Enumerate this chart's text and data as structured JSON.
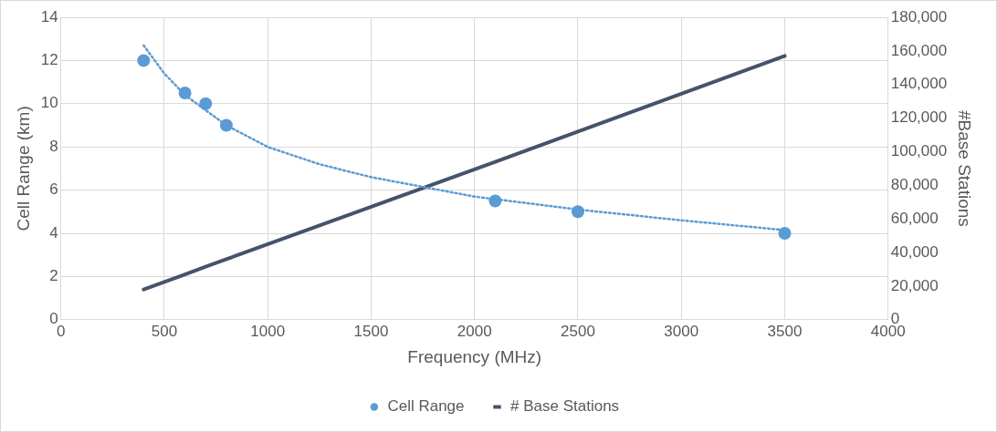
{
  "chart_data": {
    "type": "scatter",
    "xlabel": "Frequency (MHz)",
    "ylabel": "Cell Range (km)",
    "y2label": "#Base Stations",
    "xlim": [
      0,
      4000
    ],
    "xticks": [
      0,
      500,
      1000,
      1500,
      2000,
      2500,
      3000,
      3500,
      4000
    ],
    "ylim": [
      0,
      14
    ],
    "yticks": [
      0,
      2,
      4,
      6,
      8,
      10,
      12,
      14
    ],
    "y2lim": [
      0,
      180000
    ],
    "y2ticks": [
      0,
      {
        "value": 20000,
        "label": "20,000"
      },
      {
        "value": 40000,
        "label": "40,000"
      },
      {
        "value": 60000,
        "label": "60,000"
      },
      {
        "value": 80000,
        "label": "80,000"
      },
      {
        "value": 100000,
        "label": "100,000"
      },
      {
        "value": 120000,
        "label": "120,000"
      },
      {
        "value": 140000,
        "label": "140,000"
      },
      {
        "value": 160000,
        "label": "160,000"
      },
      {
        "value": 180000,
        "label": "180,000"
      }
    ],
    "grid": true,
    "legend": "bottom",
    "series": [
      {
        "name": "Cell Range",
        "type": "scatter",
        "color": "#5b9bd5",
        "marker": "circle",
        "x": [
          400,
          600,
          700,
          800,
          2100,
          2500,
          3500
        ],
        "values": [
          12,
          10.5,
          10,
          9,
          5.5,
          5,
          4
        ]
      },
      {
        "type": "line",
        "color": "#5b9bd5",
        "marker": "none",
        "line_style": "dotted",
        "x": [
          400,
          500,
          600,
          800,
          1000,
          1250,
          1500,
          2000,
          2500,
          3000,
          3500
        ],
        "values": [
          12.7,
          11.4,
          10.4,
          9,
          8,
          7.2,
          6.6,
          5.7,
          5.1,
          4.6,
          4.15
        ]
      },
      {
        "name": "# Base Stations",
        "type": "line",
        "color": "#44546a",
        "marker": "none",
        "line_style": "solid",
        "axis": "y2",
        "x": [
          400,
          600,
          700,
          800,
          2100,
          2500,
          3500
        ],
        "values": [
          18000,
          27000,
          31500,
          36000,
          94000,
          112000,
          157000
        ]
      }
    ]
  }
}
